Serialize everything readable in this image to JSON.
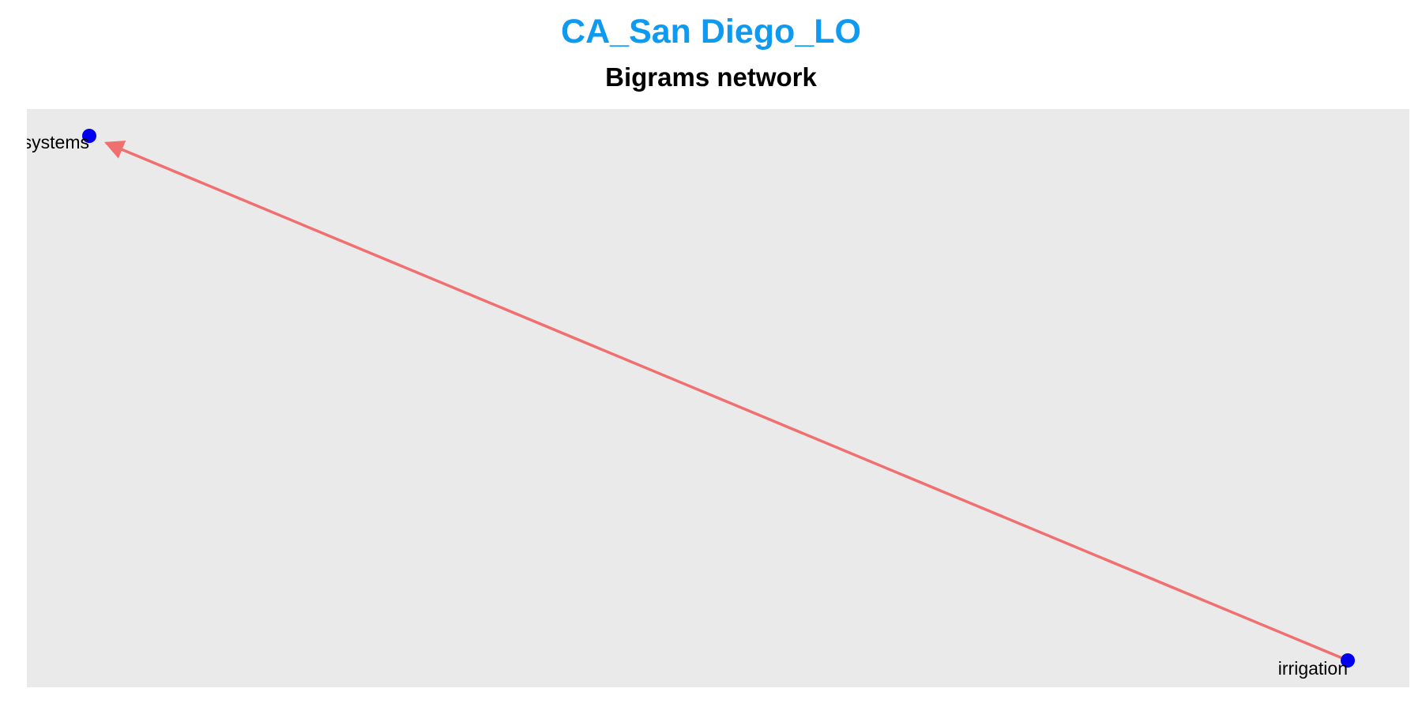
{
  "title": "CA_San Diego_LO",
  "subtitle": "Bigrams network",
  "colors": {
    "title": "#0e9af0",
    "panel_background": "#ebeaeb",
    "edge": "#f07070",
    "node": "#0000ee"
  },
  "network": {
    "directed": true,
    "nodes": [
      {
        "id": "systems",
        "label": "systems"
      },
      {
        "id": "irrigation",
        "label": "irrigation"
      }
    ],
    "edges": [
      {
        "from": "irrigation",
        "to": "systems"
      }
    ]
  }
}
